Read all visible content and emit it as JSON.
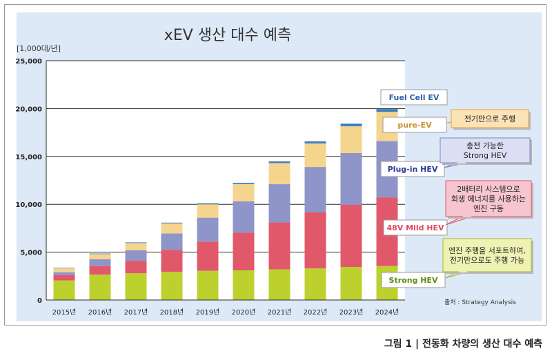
{
  "chart_data": {
    "type": "bar",
    "stacked": true,
    "title": "xEV 생산 대수 예측",
    "unit_label": "[1,000대/년]",
    "categories": [
      "2015년",
      "2016년",
      "2017년",
      "2018년",
      "2019년",
      "2020년",
      "2021년",
      "2022년",
      "2023년",
      "2024년"
    ],
    "y_ticks": [
      "0",
      "5,000",
      "10,000",
      "15,000",
      "20,000",
      "25,000"
    ],
    "ylim": [
      0,
      25000
    ],
    "grid": true,
    "series": [
      {
        "name": "Strong HEV",
        "color": "#bcd12e",
        "values": [
          2050,
          2650,
          2800,
          2950,
          3050,
          3100,
          3200,
          3300,
          3450,
          3550
        ]
      },
      {
        "name": "48V Mild HEV",
        "color": "#e2586b",
        "values": [
          550,
          900,
          1300,
          2300,
          3050,
          3950,
          4900,
          5850,
          6500,
          7150
        ]
      },
      {
        "name": "Plug-in HEV",
        "color": "#8f95c8",
        "values": [
          300,
          700,
          1100,
          1700,
          2500,
          3250,
          4000,
          4750,
          5400,
          5900
        ]
      },
      {
        "name": "pure-EV",
        "color": "#f5d48e",
        "values": [
          400,
          550,
          750,
          1050,
          1400,
          1800,
          2200,
          2450,
          2800,
          3050
        ]
      },
      {
        "name": "Fuel Cell EV",
        "color": "#3d80c2",
        "values": [
          50,
          60,
          70,
          80,
          100,
          130,
          180,
          220,
          270,
          300
        ]
      }
    ],
    "series_labels": [
      {
        "text": "Strong HEV",
        "color": "#5d8f1a"
      },
      {
        "text": "48V Mild HEV",
        "color": "#e2485f"
      },
      {
        "text": "Plug-in HEV",
        "color": "#2d3b94"
      },
      {
        "text": "pure-EV",
        "color": "#c9932d"
      },
      {
        "text": "Fuel Cell EV",
        "color": "#2d5fa8"
      }
    ],
    "callouts": [
      {
        "lines": [
          "엔진 주행을 서포트하여,",
          "전기만으로도 주행 가능"
        ],
        "fill": "#eef3b4",
        "stroke": "#a7b636"
      },
      {
        "lines": [
          "2배터리 시스템으로",
          "회생 에너지를 사용하는",
          "엔진 구동"
        ],
        "fill": "#f6c5cf",
        "stroke": "#e2586b"
      },
      {
        "lines": [
          "충전 가능한",
          "Strong HEV"
        ],
        "fill": "#dcdff3",
        "stroke": "#7c84c4"
      },
      {
        "lines": [
          "전기만으로 주행"
        ],
        "fill": "#fbe3b6",
        "stroke": "#e7a43a"
      }
    ],
    "source": "출처 : Strategy Analysis"
  },
  "figure_caption": "그림 1 | 전동화 차량의 생산 대수 예측"
}
